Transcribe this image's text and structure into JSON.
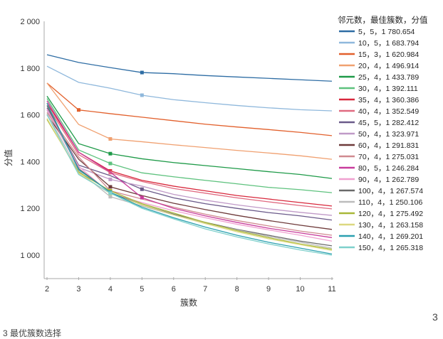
{
  "chart_data": {
    "type": "line",
    "title": "",
    "xlabel": "簇数",
    "ylabel": "分值",
    "x": [
      2,
      3,
      4,
      5,
      6,
      7,
      8,
      9,
      10,
      11
    ],
    "xlim": [
      2,
      11
    ],
    "ylim": [
      900,
      2000
    ],
    "yticks": [
      1000,
      1200,
      1400,
      1600,
      1800,
      2000
    ],
    "ytick_labels": [
      "1 000",
      "1 200",
      "1 400",
      "1 600",
      "1 800",
      "2 000"
    ],
    "xtick_labels": [
      "2",
      "3",
      "4",
      "5",
      "6",
      "7",
      "8",
      "9",
      "10",
      "11"
    ],
    "grid": false,
    "legend_title": "邻元数，最佳簇数，分值",
    "legend_position": "right",
    "series": [
      {
        "name": "5，5，1 780.654",
        "best": 5,
        "color": "#2e6da4",
        "values": [
          1857,
          1824,
          1802,
          1781,
          1776,
          1768,
          1762,
          1756,
          1750,
          1744
        ]
      },
      {
        "name": "10，5，1 683.794",
        "best": 5,
        "color": "#8fb8dc",
        "values": [
          1808,
          1739,
          1714,
          1684,
          1665,
          1652,
          1640,
          1630,
          1622,
          1617
        ]
      },
      {
        "name": "15，3，1 620.984",
        "best": 3,
        "color": "#e2602c",
        "values": [
          1736,
          1621,
          1605,
          1590,
          1575,
          1560,
          1548,
          1537,
          1525,
          1511
        ]
      },
      {
        "name": "20，4，1 496.914",
        "best": 4,
        "color": "#f0a070",
        "values": [
          1736,
          1559,
          1497,
          1485,
          1472,
          1460,
          1448,
          1437,
          1425,
          1410
        ]
      },
      {
        "name": "25，4，1 433.789",
        "best": 4,
        "color": "#1e9a48",
        "values": [
          1680,
          1477,
          1434,
          1412,
          1396,
          1383,
          1370,
          1357,
          1345,
          1328
        ]
      },
      {
        "name": "30，4，1 392.111",
        "best": 4,
        "color": "#5ec27e",
        "values": [
          1670,
          1450,
          1392,
          1352,
          1335,
          1320,
          1305,
          1290,
          1280,
          1267
        ]
      },
      {
        "name": "35，4，1 360.386",
        "best": 4,
        "color": "#d8283c",
        "values": [
          1650,
          1440,
          1360,
          1320,
          1295,
          1275,
          1255,
          1240,
          1225,
          1210
        ]
      },
      {
        "name": "40，4，1 352.549",
        "best": 4,
        "color": "#e06a80",
        "values": [
          1640,
          1430,
          1353,
          1315,
          1285,
          1265,
          1245,
          1228,
          1212,
          1198
        ]
      },
      {
        "name": "45，5，1 282.412",
        "best": 5,
        "color": "#6a5a8a",
        "values": [
          1630,
          1385,
          1340,
          1282,
          1245,
          1220,
          1200,
          1182,
          1168,
          1150
        ]
      },
      {
        "name": "50，4，1 323.971",
        "best": 4,
        "color": "#c09ac8",
        "values": [
          1620,
          1375,
          1324,
          1295,
          1260,
          1235,
          1215,
          1198,
          1183,
          1170
        ]
      },
      {
        "name": "60，4，1 291.831",
        "best": 4,
        "color": "#6e3a3a",
        "values": [
          1600,
          1410,
          1292,
          1255,
          1222,
          1195,
          1170,
          1148,
          1128,
          1110
        ]
      },
      {
        "name": "70，4，1 275.031",
        "best": 4,
        "color": "#d08a90",
        "values": [
          1610,
          1420,
          1275,
          1240,
          1205,
          1175,
          1148,
          1125,
          1103,
          1085
        ]
      },
      {
        "name": "80，5，1 246.284",
        "best": 5,
        "color": "#c83c9c",
        "values": [
          1660,
          1440,
          1355,
          1246,
          1200,
          1168,
          1140,
          1115,
          1095,
          1075
        ]
      },
      {
        "name": "90，4，1 262.789",
        "best": 4,
        "color": "#f0a0d0",
        "values": [
          1625,
          1380,
          1263,
          1225,
          1190,
          1160,
          1132,
          1108,
          1085,
          1060
        ]
      },
      {
        "name": "100，4，1 267.574",
        "best": 4,
        "color": "#6a6a6a",
        "values": [
          1640,
          1370,
          1268,
          1215,
          1175,
          1140,
          1110,
          1085,
          1060,
          1040
        ]
      },
      {
        "name": "110，4，1 250.106",
        "best": 4,
        "color": "#bcbcbc",
        "values": [
          1605,
          1360,
          1250,
          1210,
          1172,
          1138,
          1108,
          1080,
          1055,
          1030
        ]
      },
      {
        "name": "120，4，1 275.492",
        "best": 4,
        "color": "#a8b838",
        "values": [
          1580,
          1355,
          1275,
          1220,
          1180,
          1140,
          1105,
          1075,
          1048,
          1025
        ]
      },
      {
        "name": "130，4，1 263.158",
        "best": 4,
        "color": "#dcd880",
        "values": [
          1585,
          1350,
          1263,
          1215,
          1172,
          1135,
          1100,
          1070,
          1045,
          1020
        ]
      },
      {
        "name": "140，4，1 269.201",
        "best": 4,
        "color": "#2aa0b0",
        "values": [
          1650,
          1365,
          1269,
          1205,
          1160,
          1120,
          1085,
          1055,
          1030,
          1005
        ]
      },
      {
        "name": "150，4，1 265.318",
        "best": 4,
        "color": "#7ed0cc",
        "values": [
          1600,
          1345,
          1265,
          1200,
          1155,
          1112,
          1078,
          1048,
          1022,
          1000
        ]
      }
    ]
  },
  "page": {
    "page_number": "3",
    "caption": "3 最优簇数选择"
  }
}
